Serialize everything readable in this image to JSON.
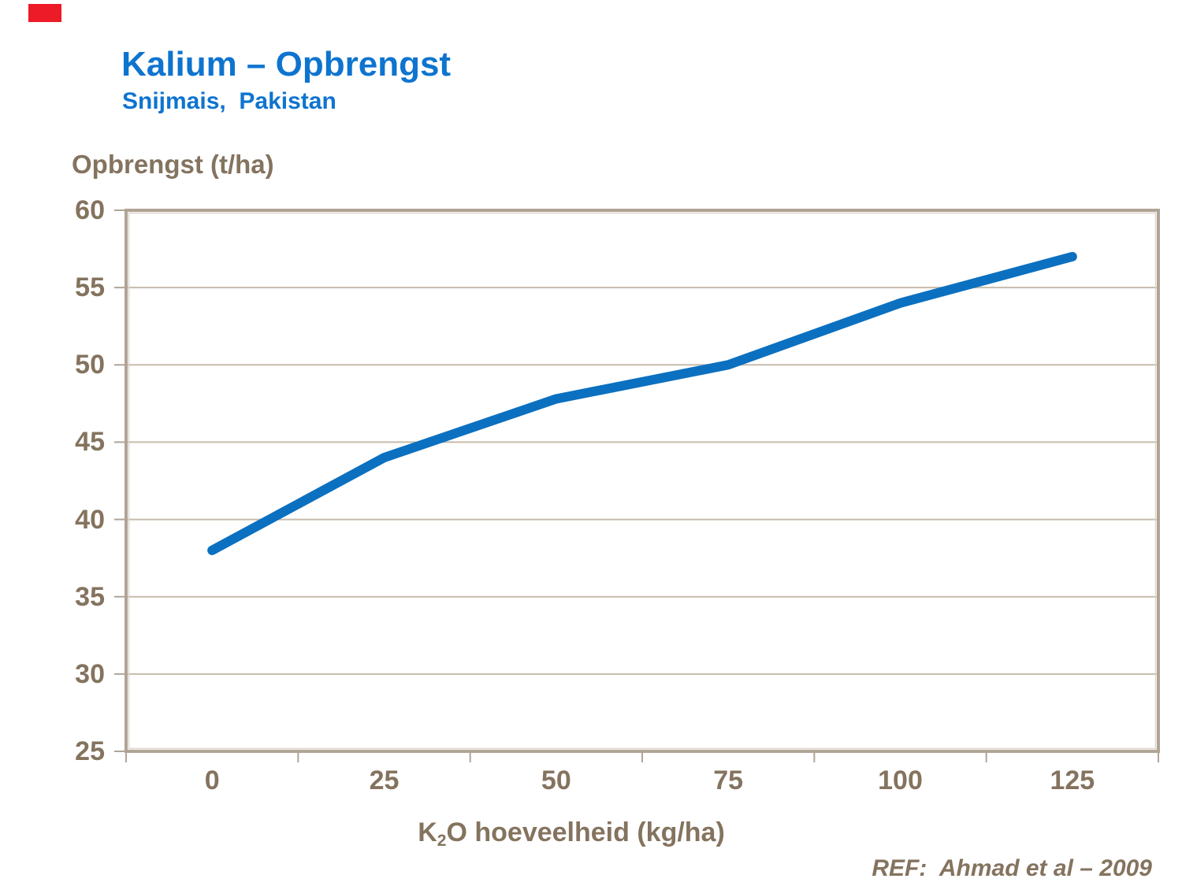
{
  "page": {
    "background": "#FFFFFF"
  },
  "decorations": {
    "record_bar_color": "#EC1B27"
  },
  "header": {
    "title": "Kalium – Opbrengst",
    "subtitle": "Snijmais,  Pakistan"
  },
  "labels": {
    "y_axis_title": "Opbrengst (t/ha)",
    "x_axis_title": {
      "pre": "K",
      "sub": "2",
      "post": "O hoeveelheid (kg/ha)"
    }
  },
  "footer": {
    "reference": "REF:  Ahmad et al – 2009"
  },
  "colors": {
    "title_blue": "#0E74CF",
    "text_brown": "#84735E",
    "axis_border": "#B0A495",
    "axis_border_highlight": "#DCD4C9",
    "gridline": "#C7BBAB",
    "line_blue": "#0B70C0"
  },
  "chart_data": {
    "type": "line",
    "title": "Kalium – Opbrengst",
    "subtitle": "Snijmais, Pakistan",
    "categories": [
      0,
      25,
      50,
      75,
      100,
      125
    ],
    "xtick_labels": [
      "0",
      "25",
      "50",
      "75",
      "100",
      "125"
    ],
    "series": [
      {
        "name": "Opbrengst (t/ha)",
        "values": [
          38,
          44,
          47.8,
          50,
          54,
          57
        ]
      }
    ],
    "xlabel": "K2O hoeveelheid (kg/ha)",
    "ylabel": "Opbrengst (t/ha)",
    "ylim": [
      25,
      60
    ],
    "yticks": [
      25,
      30,
      35,
      40,
      45,
      50,
      55,
      60
    ],
    "grid": "horizontal-only",
    "legend": "none"
  }
}
